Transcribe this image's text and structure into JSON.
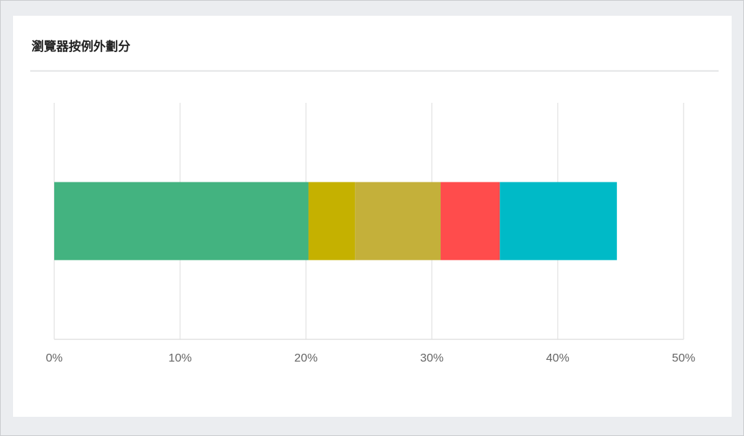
{
  "chart_data": {
    "type": "bar",
    "orientation": "horizontal",
    "stacked": true,
    "title": "瀏覽器按例外劃分",
    "series": [
      {
        "color": "#43b380",
        "values": [
          20.2
        ]
      },
      {
        "color": "#c5b100",
        "values": [
          3.7
        ]
      },
      {
        "color": "#c4b03a",
        "values": [
          6.8
        ]
      },
      {
        "color": "#ff4c4c",
        "values": [
          4.7
        ]
      },
      {
        "color": "#00bac7",
        "values": [
          9.3
        ]
      }
    ],
    "xlim": [
      0,
      50
    ],
    "xticks": [
      {
        "value": 0,
        "label": "0%"
      },
      {
        "value": 10,
        "label": "10%"
      },
      {
        "value": 20,
        "label": "20%"
      },
      {
        "value": 30,
        "label": "30%"
      },
      {
        "value": 40,
        "label": "40%"
      },
      {
        "value": 50,
        "label": "50%"
      }
    ],
    "grid": true
  }
}
